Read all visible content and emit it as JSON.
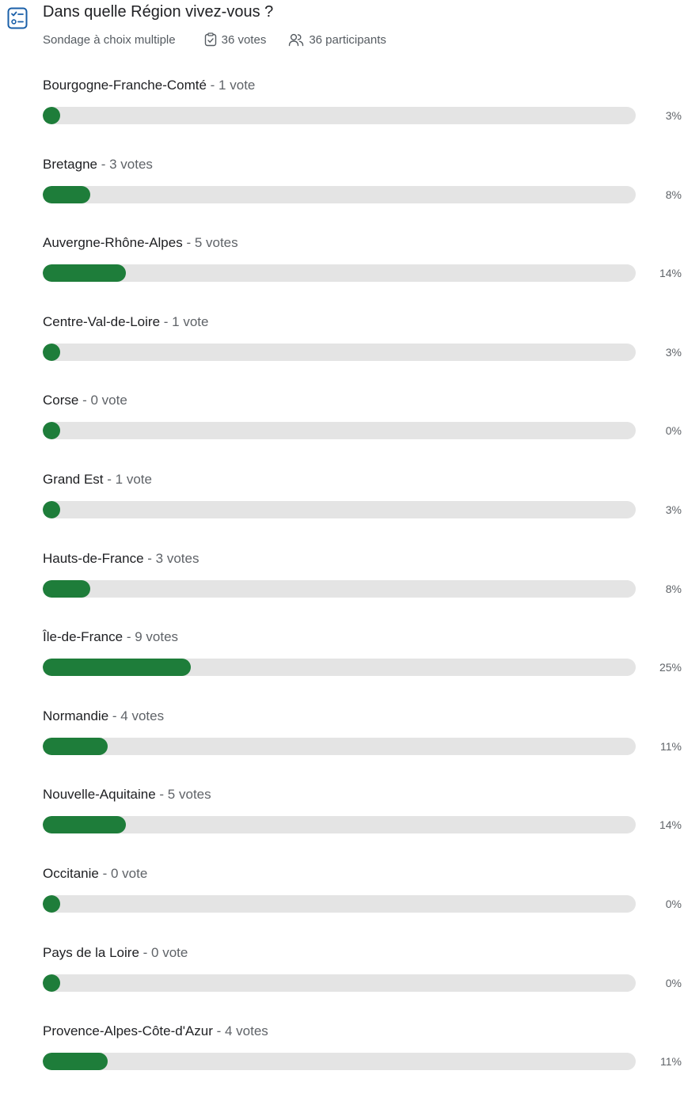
{
  "poll": {
    "icon": "checklist-icon",
    "title": "Dans quelle Région vivez-vous ?",
    "type_label": "Sondage à choix multiple",
    "votes_icon": "clipboard-check-icon",
    "votes_label": "36 votes",
    "participants_icon": "people-icon",
    "participants_label": "36 participants"
  },
  "options": [
    {
      "name": "Bourgogne-Franche-Comté",
      "count_label": " - 1 vote",
      "percent_label": "3%",
      "votes": 1,
      "fraction": 0.03
    },
    {
      "name": "Bretagne",
      "count_label": " - 3 votes",
      "percent_label": "8%",
      "votes": 3,
      "fraction": 0.08
    },
    {
      "name": "Auvergne-Rhône-Alpes",
      "count_label": " - 5 votes",
      "percent_label": "14%",
      "votes": 5,
      "fraction": 0.14
    },
    {
      "name": "Centre-Val-de-Loire",
      "count_label": " - 1 vote",
      "percent_label": "3%",
      "votes": 1,
      "fraction": 0.03
    },
    {
      "name": "Corse",
      "count_label": " - 0 vote",
      "percent_label": "0%",
      "votes": 0,
      "fraction": 0.0
    },
    {
      "name": "Grand Est",
      "count_label": " - 1 vote",
      "percent_label": "3%",
      "votes": 1,
      "fraction": 0.03
    },
    {
      "name": "Hauts-de-France",
      "count_label": " - 3 votes",
      "percent_label": "8%",
      "votes": 3,
      "fraction": 0.08
    },
    {
      "name": "Île-de-France",
      "count_label": " - 9 votes",
      "percent_label": "25%",
      "votes": 9,
      "fraction": 0.25
    },
    {
      "name": "Normandie",
      "count_label": " - 4 votes",
      "percent_label": "11%",
      "votes": 4,
      "fraction": 0.11
    },
    {
      "name": "Nouvelle-Aquitaine",
      "count_label": " - 5 votes",
      "percent_label": "14%",
      "votes": 5,
      "fraction": 0.14
    },
    {
      "name": "Occitanie",
      "count_label": " - 0 vote",
      "percent_label": "0%",
      "votes": 0,
      "fraction": 0.0
    },
    {
      "name": "Pays de la Loire",
      "count_label": " - 0 vote",
      "percent_label": "0%",
      "votes": 0,
      "fraction": 0.0
    },
    {
      "name": "Provence-Alpes-Côte-d'Azur",
      "count_label": " - 4 votes",
      "percent_label": "11%",
      "votes": 4,
      "fraction": 0.11
    }
  ],
  "colors": {
    "fill": "#1e7d3a",
    "track": "#e4e4e4",
    "icon_accent": "#1a5fa8"
  }
}
